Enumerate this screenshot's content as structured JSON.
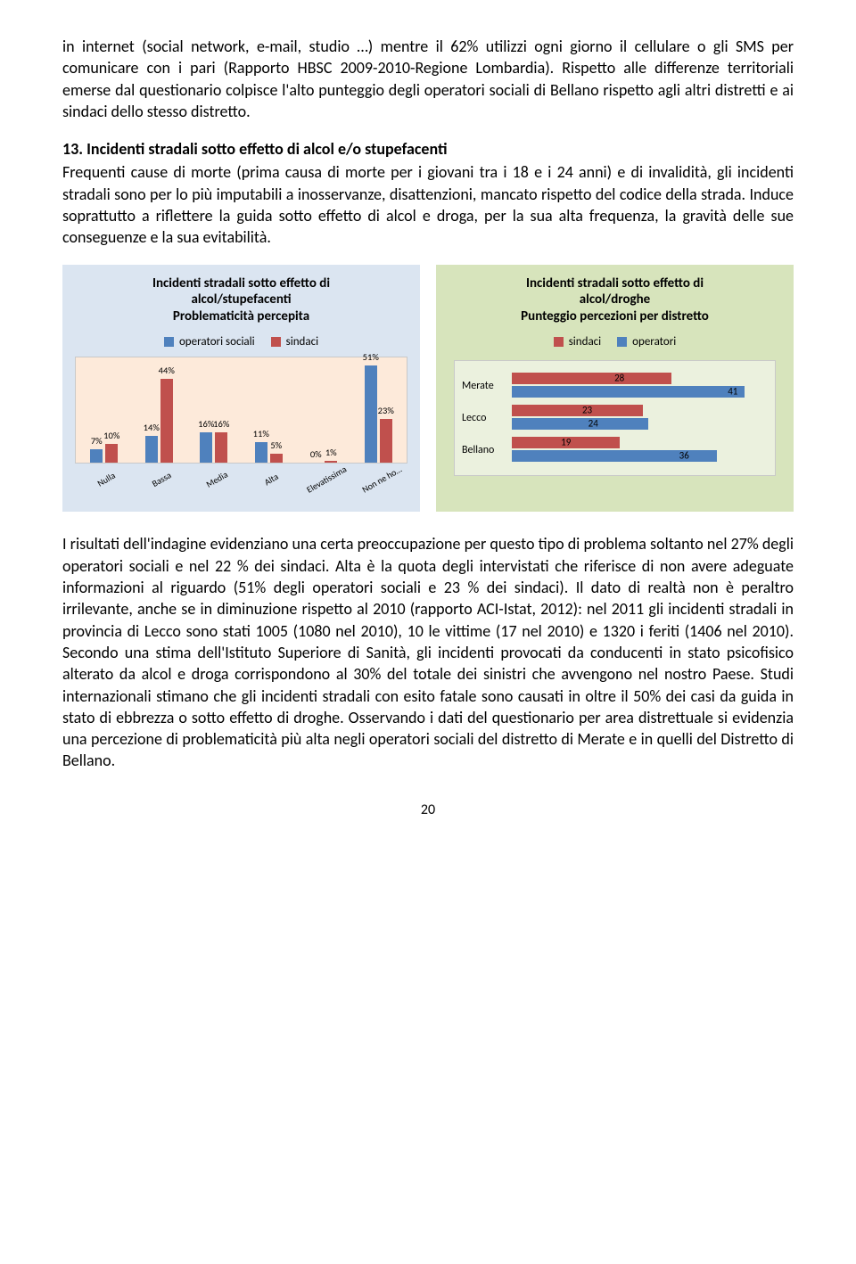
{
  "para_top": "in internet (social network, e-mail, studio …) mentre il 62% utilizzi ogni giorno il cellulare o gli SMS per comunicare con i pari (Rapporto HBSC 2009-2010-Regione Lombardia). Rispetto alle differenze territoriali emerse dal questionario colpisce l'alto punteggio degli operatori sociali di Bellano rispetto agli altri distretti e ai sindaci dello stesso distretto.",
  "section_title": "13. Incidenti stradali sotto effetto di alcol e/o stupefacenti",
  "para_section": "Frequenti cause di morte (prima causa di morte per i giovani tra i 18 e i 24 anni) e di invalidità, gli incidenti stradali sono per lo più imputabili a inosservanze, disattenzioni, mancato rispetto del codice della strada. Induce soprattutto a riflettere la guida sotto effetto di alcol e droga, per la sua alta frequenza, la gravità delle sue conseguenze e la sua evitabilità.",
  "chart_left": {
    "type": "bar-grouped",
    "title_line1": "Incidenti stradali sotto effetto di",
    "title_line2": "alcol/stupefacenti",
    "title_line3": "Problematicità percepita",
    "legend": [
      {
        "label": "operatori sociali",
        "color": "#4f81bd"
      },
      {
        "label": "sindaci",
        "color": "#c0504d"
      }
    ],
    "categories": [
      "Nulla",
      "Bassa",
      "Media",
      "Alta",
      "Elevatissima",
      "Non ne ho…"
    ],
    "series_operatori": [
      7,
      14,
      16,
      11,
      0,
      51
    ],
    "series_sindaci": [
      10,
      44,
      16,
      5,
      1,
      23
    ],
    "ymax": 55,
    "plot_bg": "#fdeada",
    "box_bg": "#dbe5f1",
    "bar_color_op": "#4f81bd",
    "bar_color_si": "#c0504d"
  },
  "chart_right": {
    "type": "bar-horizontal-grouped",
    "title_line1": "Incidenti stradali sotto effetto di",
    "title_line2": "alcol/droghe",
    "title_line3": "Punteggio percezioni per distretto",
    "legend": [
      {
        "label": "sindaci",
        "color": "#c0504d"
      },
      {
        "label": "operatori",
        "color": "#4f81bd"
      }
    ],
    "categories": [
      "Merate",
      "Lecco",
      "Bellano"
    ],
    "series_sindaci": [
      28,
      23,
      19
    ],
    "series_operatori": [
      41,
      24,
      36
    ],
    "xmax": 45,
    "plot_bg": "#ebf1de",
    "box_bg": "#d7e4bc",
    "bar_color_si": "#c0504d",
    "bar_color_op": "#4f81bd"
  },
  "para_bottom": "I risultati dell'indagine evidenziano una certa preoccupazione per questo tipo di problema soltanto nel 27% degli operatori sociali e nel 22 % dei sindaci. Alta è la quota degli intervistati che riferisce di non avere adeguate informazioni al riguardo (51% degli operatori sociali e 23 % dei sindaci). Il dato di realtà non è peraltro irrilevante, anche se in diminuzione rispetto al 2010 (rapporto ACI-Istat, 2012): nel 2011 gli incidenti stradali in provincia di Lecco sono stati 1005 (1080 nel 2010), 10 le vittime (17 nel 2010) e 1320 i feriti (1406 nel 2010). Secondo una stima dell'Istituto Superiore di Sanità, gli incidenti provocati da conducenti in stato psicofisico alterato da alcol e droga corrispondono al 30% del totale dei sinistri che avvengono nel nostro Paese. Studi internazionali stimano che gli incidenti stradali con esito fatale sono causati in oltre il 50% dei casi da guida in stato di ebbrezza o sotto effetto di droghe. Osservando i dati del questionario per area distrettuale si evidenzia una percezione di problematicità più alta negli operatori sociali del distretto di Merate e in quelli del Distretto di Bellano.",
  "page_number": "20"
}
